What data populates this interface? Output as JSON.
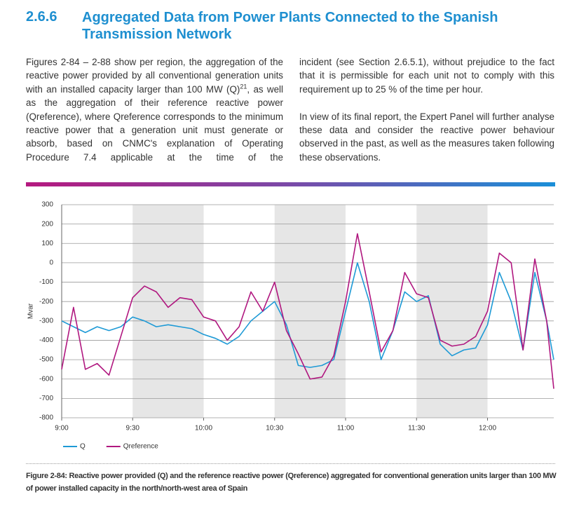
{
  "section": {
    "number": "2.6.6",
    "title": "Aggregated Data from Power Plants Connected to the Spanish Transmission Network"
  },
  "text": {
    "column_1": {
      "before_note": "Figures 2-84 – 2-88 show per region, the aggregation of the reactive power provided by all conventional generation units with an installed capacity larger than 100 MW (Q)",
      "note": "21",
      "after_note": ", as well as the aggregation of their reference reactive power (Qreference), where Qreference corresponds to the minimum reactive power that a generation unit must generate or absorb, based on CNMC's explanation of Operating Procedure 7.4 applicable at the time of the"
    },
    "column_2": [
      "incident (see Section 2.6.5.1), without prejudice to the fact that it is permissible for each unit not to comply with this requirement up to 25 % of the time per hour.",
      "In view of its final report, the Expert Panel will further analyse these data and consider the reactive power behaviour observed in the past, as well as the measures taken following these observations."
    ]
  },
  "chart_data": {
    "type": "line",
    "y_label": "Mvar",
    "x": [
      "9:00",
      "9:05",
      "9:10",
      "9:15",
      "9:20",
      "9:25",
      "9:30",
      "9:35",
      "9:40",
      "9:45",
      "9:50",
      "9:55",
      "10:00",
      "10:05",
      "10:10",
      "10:15",
      "10:20",
      "10:25",
      "10:30",
      "10:35",
      "10:40",
      "10:45",
      "10:50",
      "10:55",
      "11:00",
      "11:05",
      "11:10",
      "11:15",
      "11:20",
      "11:25",
      "11:30",
      "11:35",
      "11:40",
      "11:45",
      "11:50",
      "11:55",
      "12:00",
      "12:05",
      "12:10",
      "12:15",
      "12:20",
      "12:25",
      "12:28"
    ],
    "series": [
      {
        "name": "Q",
        "color": "#1e9ad6",
        "values": [
          -300,
          -330,
          -360,
          -330,
          -350,
          -330,
          -280,
          -300,
          -330,
          -320,
          -330,
          -340,
          -370,
          -390,
          -420,
          -380,
          -300,
          -250,
          -200,
          -320,
          -530,
          -540,
          -530,
          -500,
          -250,
          0,
          -200,
          -500,
          -350,
          -150,
          -200,
          -170,
          -420,
          -480,
          -450,
          -440,
          -320,
          -50,
          -200,
          -450,
          -50,
          -300,
          -500
        ]
      },
      {
        "name": "Qreference",
        "color": "#b0177f",
        "values": [
          -550,
          -230,
          -550,
          -520,
          -580,
          -380,
          -180,
          -120,
          -150,
          -230,
          -180,
          -190,
          -280,
          -300,
          -400,
          -330,
          -150,
          -250,
          -100,
          -350,
          -470,
          -600,
          -590,
          -480,
          -200,
          150,
          -150,
          -460,
          -350,
          -50,
          -160,
          -180,
          -400,
          -430,
          -420,
          -380,
          -250,
          50,
          0,
          -450,
          20,
          -300,
          -650
        ]
      }
    ],
    "xlim": [
      "9:00",
      "12:28"
    ],
    "xticks": [
      "9:00",
      "9:30",
      "10:00",
      "10:30",
      "11:00",
      "11:30",
      "12:00"
    ],
    "ylim": [
      -800,
      300
    ],
    "yticks": [
      -800,
      -700,
      -600,
      -500,
      -400,
      -300,
      -200,
      -100,
      0,
      100,
      200,
      300
    ],
    "shaded": [
      [
        "9:30",
        "10:00"
      ],
      [
        "10:30",
        "11:00"
      ],
      [
        "11:30",
        "12:00"
      ]
    ],
    "grid": true,
    "legend": "bottom-left",
    "caption": "Figure 2-84: Reactive power provided (Q) and the reference reactive power (Qreference) aggregated for conventional generation units larger than 100 MW of power installed capacity in the north/north-west area of Spain"
  }
}
